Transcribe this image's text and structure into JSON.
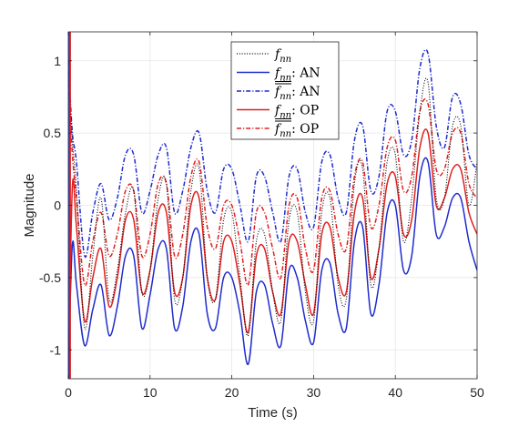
{
  "chart_data": {
    "type": "line",
    "title": "",
    "xlabel": "Time (s)",
    "ylabel": "Magnitude",
    "xlim": [
      0,
      50
    ],
    "ylim": [
      -1.2,
      1.2
    ],
    "xticks": [
      0,
      10,
      20,
      30,
      40,
      50
    ],
    "xtick_labels": [
      "0",
      "10",
      "20",
      "30",
      "40",
      "50"
    ],
    "yticks": [
      -1,
      -0.5,
      0,
      0.5,
      1
    ],
    "ytick_labels": [
      "-1",
      "-0.5",
      "0",
      "0.5",
      "1"
    ],
    "grid": true,
    "legend_position": "top-center",
    "series": [
      {
        "name": "f_nn",
        "legend_label": {
          "sym": "f",
          "sub": "nn",
          "bar": "none",
          "suffix": ""
        },
        "color": "#000000",
        "style": "dotted",
        "x": [
          0,
          0.5,
          1,
          2,
          3,
          4,
          5,
          6,
          7,
          8,
          9,
          10,
          11,
          12,
          13,
          14,
          15,
          16,
          17,
          18,
          19,
          20,
          21,
          22,
          23,
          24,
          25,
          26,
          27,
          28,
          29,
          30,
          31,
          32,
          33,
          34,
          35,
          36,
          37,
          38,
          39,
          40,
          41,
          42,
          43,
          44,
          45,
          46,
          47,
          48,
          49,
          50
        ],
        "y": [
          0.9,
          0.45,
          0.1,
          -0.85,
          -0.35,
          0.05,
          -0.65,
          -0.45,
          -0.05,
          0.1,
          -0.6,
          -0.45,
          0.05,
          0.15,
          -0.65,
          -0.5,
          0.1,
          0.25,
          -0.5,
          -0.65,
          -0.1,
          -0.05,
          -0.5,
          -0.9,
          -0.25,
          -0.2,
          -0.6,
          -0.8,
          -0.1,
          -0.05,
          -0.6,
          -0.8,
          -0.05,
          0.05,
          -0.55,
          -0.65,
          0.15,
          0.25,
          -0.55,
          -0.3,
          0.3,
          0.35,
          -0.25,
          0.05,
          0.65,
          0.85,
          0.05,
          0.05,
          0.55,
          0.55,
          0.0,
          0.3
        ]
      },
      {
        "name": "f_nn AN lower",
        "legend_label": {
          "sym": "f",
          "sub": "nn",
          "bar": "under",
          "suffix": ": AN"
        },
        "color": "#1f2ccc",
        "style": "solid",
        "x": [
          0,
          0.5,
          1,
          2,
          3,
          4,
          5,
          6,
          7,
          8,
          9,
          10,
          11,
          12,
          13,
          14,
          15,
          16,
          17,
          18,
          19,
          20,
          21,
          22,
          23,
          24,
          25,
          26,
          27,
          28,
          29,
          30,
          31,
          32,
          33,
          34,
          35,
          36,
          37,
          38,
          39,
          40,
          41,
          42,
          43,
          44,
          45,
          46,
          47,
          48,
          49,
          50
        ],
        "y": [
          -1.15,
          -0.27,
          -0.55,
          -0.97,
          -0.72,
          -0.55,
          -0.9,
          -0.7,
          -0.35,
          -0.35,
          -0.85,
          -0.62,
          -0.3,
          -0.3,
          -0.85,
          -0.7,
          -0.25,
          -0.2,
          -0.75,
          -0.85,
          -0.5,
          -0.5,
          -0.75,
          -1.1,
          -0.6,
          -0.55,
          -0.82,
          -0.97,
          -0.45,
          -0.5,
          -0.8,
          -0.95,
          -0.45,
          -0.4,
          -0.75,
          -0.85,
          -0.25,
          -0.15,
          -0.75,
          -0.55,
          -0.05,
          0.0,
          -0.45,
          -0.35,
          0.2,
          0.3,
          -0.2,
          -0.15,
          0.05,
          0.05,
          -0.25,
          -0.45
        ]
      },
      {
        "name": "f_nn AN upper",
        "legend_label": {
          "sym": "f",
          "sub": "nn",
          "bar": "over",
          "suffix": ": AN"
        },
        "color": "#1f2ccc",
        "style": "dashdot",
        "x": [
          0,
          0.5,
          1,
          2,
          3,
          4,
          5,
          6,
          7,
          8,
          9,
          10,
          11,
          12,
          13,
          14,
          15,
          16,
          17,
          18,
          19,
          20,
          21,
          22,
          23,
          24,
          25,
          26,
          27,
          28,
          29,
          30,
          31,
          32,
          33,
          34,
          35,
          36,
          37,
          38,
          39,
          40,
          41,
          42,
          43,
          44,
          45,
          46,
          47,
          48,
          49,
          50
        ],
        "y": [
          1.0,
          0.5,
          0.3,
          -0.35,
          -0.05,
          0.15,
          -0.1,
          0.05,
          0.35,
          0.35,
          -0.05,
          0.1,
          0.35,
          0.4,
          -0.05,
          0.1,
          0.4,
          0.5,
          0.1,
          -0.05,
          0.25,
          0.25,
          0.0,
          -0.25,
          0.2,
          0.2,
          -0.05,
          -0.25,
          0.2,
          0.25,
          -0.05,
          -0.15,
          0.3,
          0.35,
          0.05,
          -0.05,
          0.45,
          0.55,
          0.1,
          0.2,
          0.65,
          0.65,
          0.35,
          0.45,
          0.95,
          1.05,
          0.55,
          0.4,
          0.75,
          0.7,
          0.35,
          0.25
        ]
      },
      {
        "name": "f_nn OP lower",
        "legend_label": {
          "sym": "f",
          "sub": "nn",
          "bar": "under",
          "suffix": ": OP"
        },
        "color": "#e02020",
        "style": "solid",
        "x": [
          0,
          0.5,
          1,
          2,
          3,
          4,
          5,
          6,
          7,
          8,
          9,
          10,
          11,
          12,
          13,
          14,
          15,
          16,
          17,
          18,
          19,
          20,
          21,
          22,
          23,
          24,
          25,
          26,
          27,
          28,
          29,
          30,
          31,
          32,
          33,
          34,
          35,
          36,
          37,
          38,
          39,
          40,
          41,
          42,
          43,
          44,
          45,
          46,
          47,
          48,
          49,
          50
        ],
        "y": [
          -1.2,
          0.13,
          -0.15,
          -0.8,
          -0.5,
          -0.3,
          -0.7,
          -0.5,
          -0.1,
          -0.1,
          -0.6,
          -0.45,
          -0.05,
          -0.05,
          -0.6,
          -0.5,
          0.0,
          0.05,
          -0.5,
          -0.65,
          -0.25,
          -0.25,
          -0.55,
          -0.88,
          -0.35,
          -0.3,
          -0.6,
          -0.75,
          -0.25,
          -0.25,
          -0.55,
          -0.75,
          -0.2,
          -0.15,
          -0.5,
          -0.6,
          -0.05,
          0.05,
          -0.5,
          -0.3,
          0.15,
          0.2,
          -0.2,
          -0.1,
          0.4,
          0.5,
          0.0,
          0.05,
          0.25,
          0.25,
          -0.05,
          -0.2
        ]
      },
      {
        "name": "f_nn OP upper",
        "legend_label": {
          "sym": "f",
          "sub": "nn",
          "bar": "over",
          "suffix": ": OP"
        },
        "color": "#e02020",
        "style": "dashdot",
        "x": [
          0,
          0.5,
          1,
          2,
          3,
          4,
          5,
          6,
          7,
          8,
          9,
          10,
          11,
          12,
          13,
          14,
          15,
          16,
          17,
          18,
          19,
          20,
          21,
          22,
          23,
          24,
          25,
          26,
          27,
          28,
          29,
          30,
          31,
          32,
          33,
          34,
          35,
          36,
          37,
          38,
          39,
          40,
          41,
          42,
          43,
          44,
          45,
          46,
          47,
          48,
          49,
          50
        ],
        "y": [
          0.85,
          0.35,
          0.05,
          -0.55,
          -0.25,
          -0.05,
          -0.35,
          -0.2,
          0.1,
          0.1,
          -0.35,
          -0.2,
          0.15,
          0.15,
          -0.35,
          -0.2,
          0.2,
          0.3,
          -0.15,
          -0.3,
          0.0,
          0.0,
          -0.25,
          -0.55,
          -0.05,
          -0.05,
          -0.3,
          -0.5,
          0.0,
          0.05,
          -0.3,
          -0.45,
          0.05,
          0.1,
          -0.2,
          -0.3,
          0.2,
          0.3,
          -0.15,
          0.0,
          0.4,
          0.45,
          0.1,
          0.2,
          0.65,
          0.7,
          0.25,
          0.25,
          0.5,
          0.5,
          0.15,
          0.05
        ]
      }
    ]
  },
  "colors": {
    "axis": "#262626",
    "grid": "#e6e6e6",
    "blue": "#1f2ccc",
    "red": "#e02020",
    "black": "#000000",
    "magenta_spike": "#cc1a66"
  }
}
